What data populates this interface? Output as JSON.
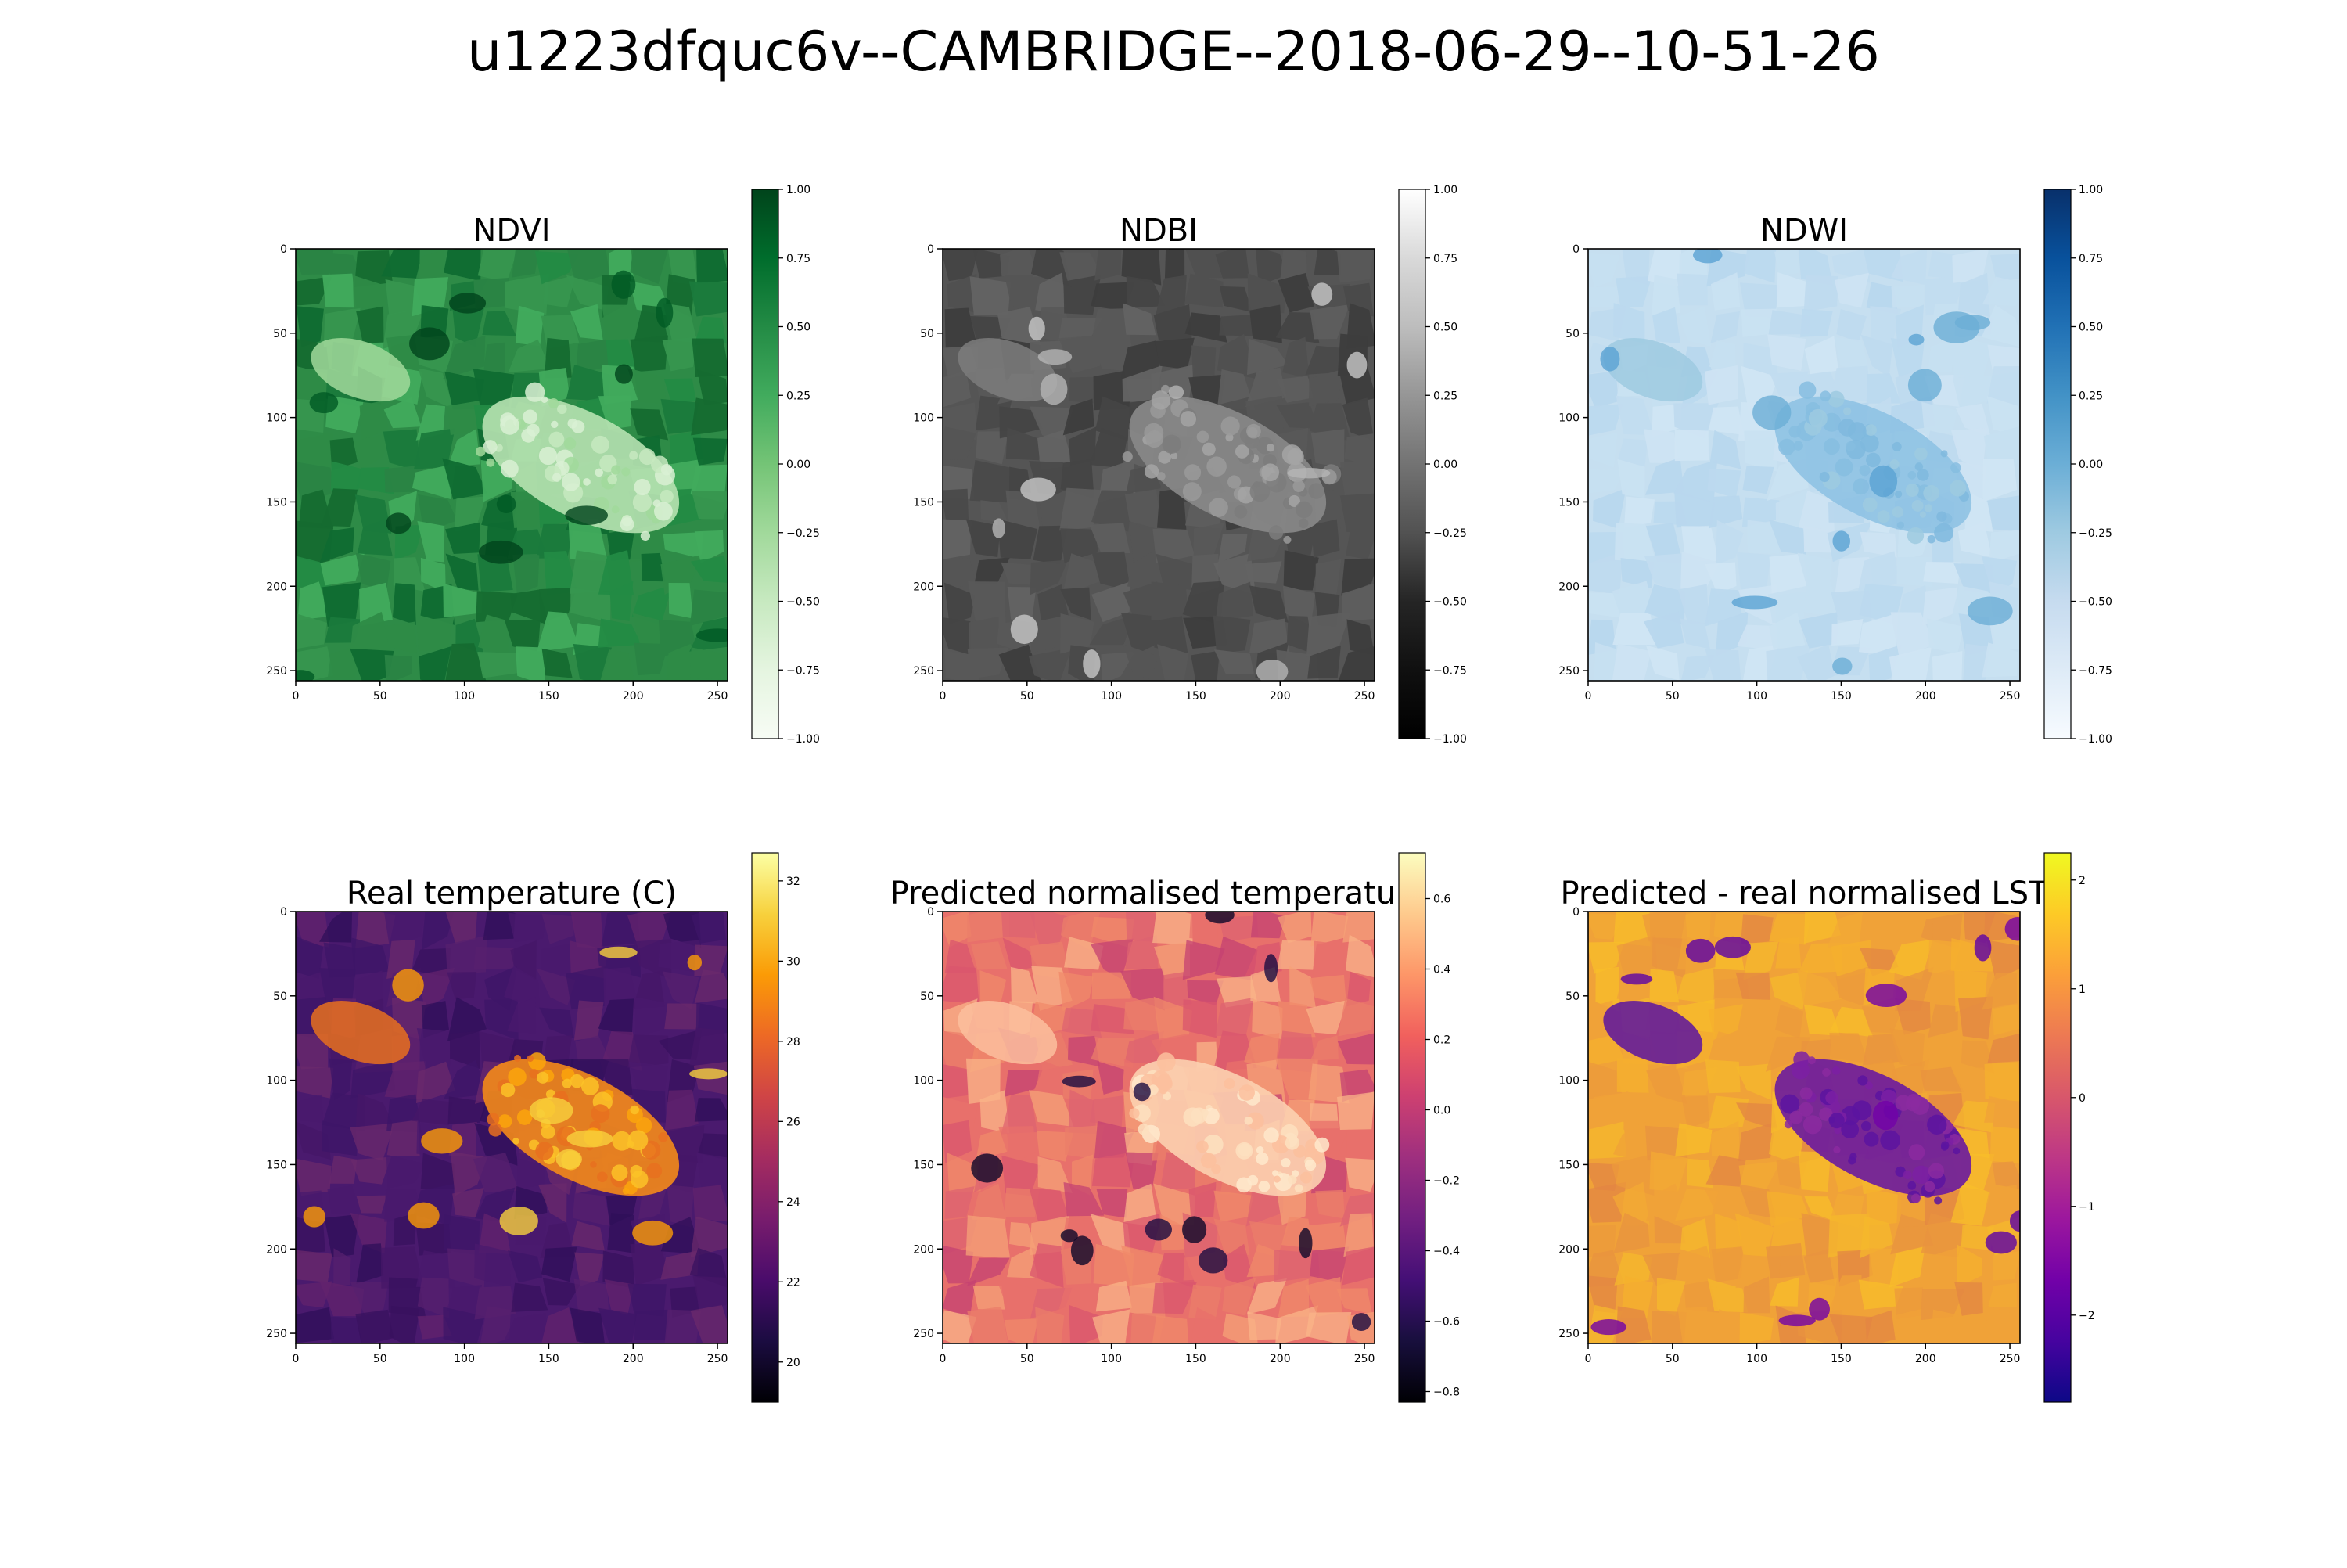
{
  "figure": {
    "suptitle": "u1223dfquc6v--CAMBRIDGE--2018-06-29--10-51-26"
  },
  "chart_data": [
    {
      "type": "heatmap",
      "title": "NDVI",
      "colormap": "Greens",
      "xlim": [
        0,
        256
      ],
      "ylim": [
        256,
        0
      ],
      "xticks": [
        "0",
        "50",
        "100",
        "150",
        "200",
        "250"
      ],
      "yticks": [
        "0",
        "50",
        "100",
        "150",
        "200",
        "250"
      ],
      "colorbar": {
        "range": [
          -1.0,
          1.0
        ],
        "ticks": [
          "1.00",
          "0.75",
          "0.50",
          "0.25",
          "0.00",
          "−0.25",
          "−0.50",
          "−0.75",
          "−1.00"
        ]
      },
      "value_range_shown": [
        0.2,
        0.95
      ],
      "colors": {
        "low": "#f7fcf5",
        "mid": "#41ab5d",
        "high": "#00441b",
        "field": "#2e8b47",
        "urban": "#b7e2b1"
      }
    },
    {
      "type": "heatmap",
      "title": "NDBI",
      "colormap": "Greys_r",
      "xlim": [
        0,
        256
      ],
      "ylim": [
        256,
        0
      ],
      "xticks": [
        "0",
        "50",
        "100",
        "150",
        "200",
        "250"
      ],
      "yticks": [
        "0",
        "50",
        "100",
        "150",
        "200",
        "250"
      ],
      "colorbar": {
        "range": [
          -1.0,
          1.0
        ],
        "ticks": [
          "1.00",
          "0.75",
          "0.50",
          "0.25",
          "0.00",
          "−0.25",
          "−0.50",
          "−0.75",
          "−1.00"
        ]
      },
      "value_range_shown": [
        -0.5,
        0.1
      ],
      "colors": {
        "low": "#000000",
        "high": "#ffffff",
        "field": "#555555",
        "urban": "#8a8a8a"
      }
    },
    {
      "type": "heatmap",
      "title": "NDWI",
      "colormap": "Blues",
      "xlim": [
        0,
        256
      ],
      "ylim": [
        256,
        0
      ],
      "xticks": [
        "0",
        "50",
        "100",
        "150",
        "200",
        "250"
      ],
      "yticks": [
        "0",
        "50",
        "100",
        "150",
        "200",
        "250"
      ],
      "colorbar": {
        "range": [
          -1.0,
          1.0
        ],
        "ticks": [
          "1.00",
          "0.75",
          "0.50",
          "0.25",
          "0.00",
          "−0.25",
          "−0.50",
          "−0.75",
          "−1.00"
        ]
      },
      "value_range_shown": [
        -0.6,
        -0.1
      ],
      "colors": {
        "low": "#f7fbff",
        "high": "#08306b",
        "field": "#c6dff0",
        "urban": "#8ec2e3"
      }
    },
    {
      "type": "heatmap",
      "title": "Real temperature (C)",
      "colormap": "inferno",
      "xlim": [
        0,
        256
      ],
      "ylim": [
        256,
        0
      ],
      "xticks": [
        "0",
        "50",
        "100",
        "150",
        "200",
        "250"
      ],
      "yticks": [
        "0",
        "50",
        "100",
        "150",
        "200",
        "250"
      ],
      "colorbar": {
        "range": [
          19.0,
          32.7
        ],
        "ticks": [
          "32",
          "30",
          "28",
          "26",
          "24",
          "22",
          "20"
        ]
      },
      "value_range_shown": [
        19.5,
        32.5
      ],
      "colors": {
        "low": "#000004",
        "mid": "#781c6d",
        "high": "#fcffa4",
        "field": "#4a1a6e",
        "urban": "#f48a1a"
      }
    },
    {
      "type": "heatmap",
      "title": "Predicted normalised temperature",
      "colormap": "magma",
      "xlim": [
        0,
        256
      ],
      "ylim": [
        256,
        0
      ],
      "xticks": [
        "0",
        "50",
        "100",
        "150",
        "200",
        "250"
      ],
      "yticks": [
        "0",
        "50",
        "100",
        "150",
        "200",
        "250"
      ],
      "colorbar": {
        "range": [
          -0.83,
          0.73
        ],
        "ticks": [
          "0.6",
          "0.4",
          "0.2",
          "0.0",
          "−0.2",
          "−0.4",
          "−0.6",
          "−0.8"
        ]
      },
      "value_range_shown": [
        -0.8,
        0.7
      ],
      "colors": {
        "low": "#000004",
        "mid": "#b73779",
        "high": "#fcfdbf",
        "field": "#e8706b",
        "urban": "#fcd0b0"
      }
    },
    {
      "type": "heatmap",
      "title": "Predicted - real normalised LST",
      "colormap": "plasma",
      "xlim": [
        0,
        256
      ],
      "ylim": [
        256,
        0
      ],
      "xticks": [
        "0",
        "50",
        "100",
        "150",
        "200",
        "250"
      ],
      "yticks": [
        "0",
        "50",
        "100",
        "150",
        "200",
        "250"
      ],
      "colorbar": {
        "range": [
          -2.8,
          2.25
        ],
        "ticks": [
          "2",
          "1",
          "0",
          "−1",
          "−2"
        ]
      },
      "value_range_shown": [
        -2.0,
        2.0
      ],
      "colors": {
        "low": "#0d0887",
        "mid": "#cc4778",
        "high": "#f0f921",
        "field": "#f0a238",
        "urban": "#6a1aa0"
      }
    }
  ]
}
